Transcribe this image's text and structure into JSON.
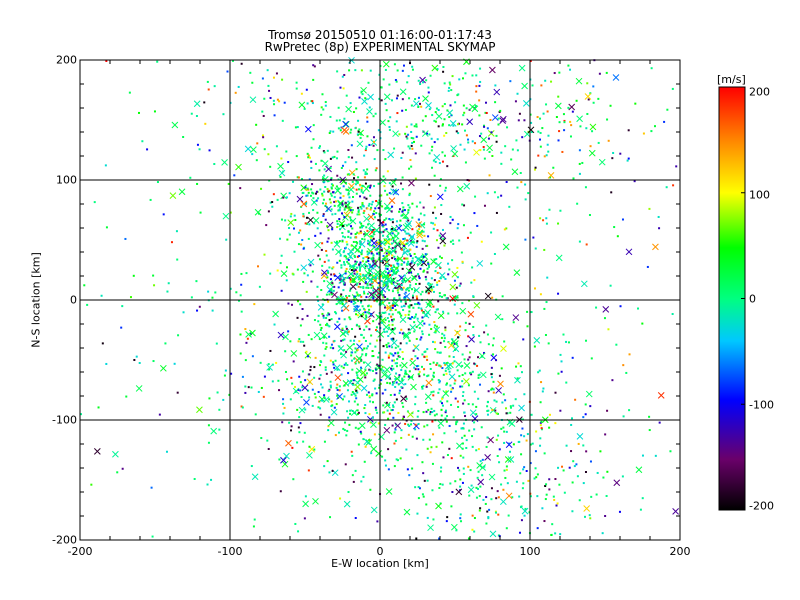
{
  "chart_data": {
    "type": "scatter",
    "title": "Tromsø 20150510 01:16:00-01:17:43",
    "subtitle": "RwPretec (8p) EXPERIMENTAL SKYMAP",
    "xlabel": "E-W location [km]",
    "ylabel": "N-S location [km]",
    "xlim": [
      -200,
      200
    ],
    "ylim": [
      -200,
      200
    ],
    "x_ticks": [
      "-200",
      "-100",
      "0",
      "100",
      "200"
    ],
    "y_ticks": [
      "200",
      "100",
      "0",
      "-100",
      "-200"
    ],
    "grid": true,
    "colorbar": {
      "label": "[m/s]",
      "range": [
        -200,
        200
      ],
      "ticks": [
        "200",
        "100",
        "0",
        "-100",
        "-200"
      ]
    },
    "markers": [
      "small-dot",
      "cross"
    ],
    "density_clusters": [
      {
        "x": 0,
        "y": 25,
        "spread_x": 22,
        "spread_y": 28,
        "weight": 0.3
      },
      {
        "x": 5,
        "y": -65,
        "spread_x": 45,
        "spread_y": 35,
        "weight": 0.22
      },
      {
        "x": 30,
        "y": 150,
        "spread_x": 70,
        "spread_y": 35,
        "weight": 0.16
      },
      {
        "x": -30,
        "y": 85,
        "spread_x": 20,
        "spread_y": 15,
        "weight": 0.06
      },
      {
        "x": 80,
        "y": -140,
        "spread_x": 35,
        "spread_y": 40,
        "weight": 0.08
      },
      {
        "x": 0,
        "y": 0,
        "spread_x": 120,
        "spread_y": 120,
        "weight": 0.18
      }
    ],
    "approx_point_count": 3500
  },
  "colors": {
    "grid": "#000000",
    "colormap": [
      "#000000",
      "#7a007a",
      "#0000ff",
      "#00c8ff",
      "#00ff00",
      "#ffff00",
      "#ff0000"
    ]
  }
}
